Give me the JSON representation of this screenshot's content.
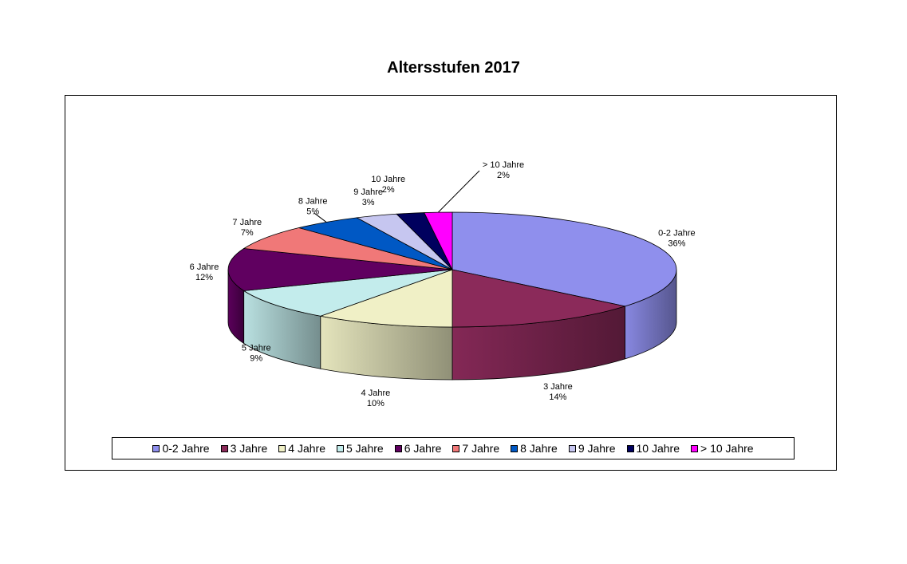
{
  "chart_data": {
    "type": "pie",
    "title": "Altersstufen 2017",
    "categories": [
      "0-2 Jahre",
      "3 Jahre",
      "4 Jahre",
      "5 Jahre",
      "6 Jahre",
      "7 Jahre",
      "8 Jahre",
      "9 Jahre",
      "10 Jahre",
      "> 10 Jahre"
    ],
    "values": [
      36,
      14,
      10,
      9,
      12,
      7,
      5,
      3,
      2,
      2
    ],
    "data_labels": [
      "36%",
      "14%",
      "10%",
      "9%",
      "12%",
      "7%",
      "5%",
      "3%",
      "2%",
      "2%"
    ],
    "colors": [
      "#8f8fed",
      "#8b2a5a",
      "#f0f0c6",
      "#c3ecec",
      "#600060",
      "#f07878",
      "#0058c4",
      "#c6c6f0",
      "#00005e",
      "#ff00ff"
    ],
    "legend_position": "bottom",
    "style": "3d-pie"
  }
}
